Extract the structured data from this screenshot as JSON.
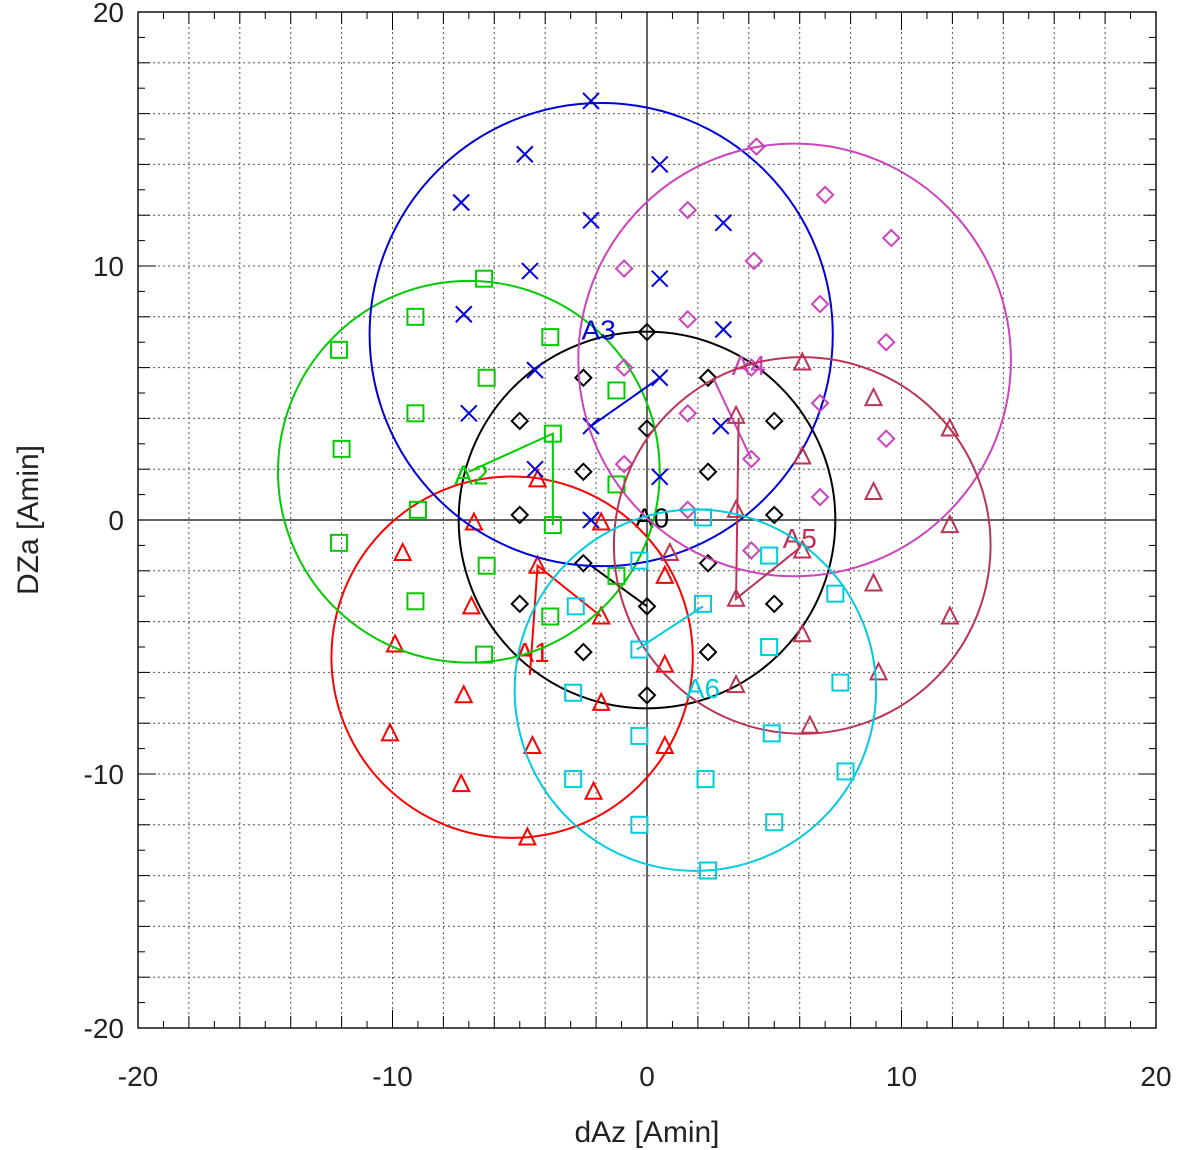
{
  "chart_data": {
    "type": "scatter",
    "title": "",
    "xlabel": "dAz [Amin]",
    "ylabel": "DZa [Amin]",
    "xlim": [
      -20,
      20
    ],
    "ylim": [
      -20,
      20
    ],
    "xticks": [
      "-20",
      "-10",
      "0",
      "10",
      "20"
    ],
    "yticks": [
      "-20",
      "-10",
      "0",
      "10",
      "20"
    ],
    "grid": true,
    "series": [
      {
        "name": "A0",
        "color": "#000000",
        "marker": "diamond",
        "center": [
          0.0,
          0.0
        ],
        "radius": 7.4,
        "label_pos": [
          0.2,
          -0.3
        ],
        "anchor": [
          0.0,
          -3.4
        ],
        "anchor_line": [
          [
            0.0,
            -3.4
          ],
          [
            -2.2,
            -1.8
          ]
        ],
        "points": [
          [
            0.0,
            7.4
          ],
          [
            -2.5,
            5.6
          ],
          [
            2.4,
            5.6
          ],
          [
            -5.0,
            3.9
          ],
          [
            0.0,
            3.6
          ],
          [
            5.0,
            3.9
          ],
          [
            -2.5,
            1.9
          ],
          [
            2.4,
            1.9
          ],
          [
            -5.0,
            0.2
          ],
          [
            5.0,
            0.2
          ],
          [
            -2.5,
            -1.7
          ],
          [
            2.4,
            -1.7
          ],
          [
            -5.0,
            -3.3
          ],
          [
            0.0,
            -3.4
          ],
          [
            5.0,
            -3.3
          ],
          [
            -2.5,
            -5.2
          ],
          [
            2.4,
            -5.2
          ],
          [
            0.0,
            -6.9
          ]
        ]
      },
      {
        "name": "A1",
        "color": "#ff0000",
        "marker": "triangle",
        "center": [
          -5.3,
          -5.4
        ],
        "radius": 7.1,
        "label_pos": [
          -4.5,
          -5.6
        ],
        "anchor": [
          -4.3,
          -1.8
        ],
        "anchor_line": [
          [
            -4.3,
            -1.8
          ],
          [
            -1.8,
            -3.8
          ],
          [
            -4.3,
            -1.8
          ],
          [
            -4.6,
            -6.1
          ]
        ],
        "points": [
          [
            -4.3,
            1.6
          ],
          [
            -6.8,
            -0.1
          ],
          [
            -1.8,
            -0.1
          ],
          [
            -9.6,
            -1.3
          ],
          [
            -4.3,
            -1.8
          ],
          [
            0.7,
            -2.2
          ],
          [
            -6.9,
            -3.4
          ],
          [
            -1.8,
            -3.8
          ],
          [
            -9.9,
            -4.9
          ],
          [
            0.7,
            -5.7
          ],
          [
            -7.2,
            -6.9
          ],
          [
            -1.8,
            -7.2
          ],
          [
            -10.1,
            -8.4
          ],
          [
            -4.5,
            -8.9
          ],
          [
            0.7,
            -8.9
          ],
          [
            -7.3,
            -10.4
          ],
          [
            -2.1,
            -10.7
          ],
          [
            -4.7,
            -12.5
          ]
        ]
      },
      {
        "name": "A2",
        "color": "#00cc00",
        "marker": "square",
        "center": [
          -7.0,
          1.9
        ],
        "radius": 7.5,
        "label_pos": [
          -6.9,
          1.4
        ],
        "anchor": [
          -3.7,
          -0.2
        ],
        "anchor_line": [
          [
            -3.7,
            -0.2
          ],
          [
            -3.7,
            3.4
          ],
          [
            -7.0,
            1.9
          ]
        ],
        "points": [
          [
            -6.4,
            9.5
          ],
          [
            -9.1,
            8.0
          ],
          [
            -12.1,
            6.7
          ],
          [
            -3.8,
            7.2
          ],
          [
            -6.3,
            5.6
          ],
          [
            -1.2,
            5.1
          ],
          [
            -9.1,
            4.2
          ],
          [
            -3.7,
            3.4
          ],
          [
            -12.0,
            2.8
          ],
          [
            -1.2,
            1.4
          ],
          [
            -9.0,
            0.4
          ],
          [
            -3.7,
            -0.2
          ],
          [
            -12.1,
            -0.9
          ],
          [
            -6.3,
            -1.8
          ],
          [
            -1.2,
            -2.2
          ],
          [
            -9.1,
            -3.2
          ],
          [
            -3.8,
            -3.8
          ],
          [
            -6.4,
            -5.3
          ]
        ]
      },
      {
        "name": "A3",
        "color": "#0000dd",
        "marker": "x",
        "center": [
          -1.8,
          7.3
        ],
        "radius": 9.1,
        "label_pos": [
          -1.9,
          7.1
        ],
        "anchor": [
          0.5,
          5.6
        ],
        "anchor_line": [
          [
            0.5,
            5.6
          ],
          [
            -2.2,
            3.7
          ]
        ],
        "points": [
          [
            -2.2,
            16.5
          ],
          [
            -4.8,
            14.4
          ],
          [
            0.5,
            14.0
          ],
          [
            -7.3,
            12.5
          ],
          [
            -2.2,
            11.8
          ],
          [
            3.0,
            11.7
          ],
          [
            -4.6,
            9.8
          ],
          [
            0.5,
            9.5
          ],
          [
            -7.2,
            8.1
          ],
          [
            3.0,
            7.5
          ],
          [
            -4.4,
            5.9
          ],
          [
            0.5,
            5.6
          ],
          [
            -7.0,
            4.2
          ],
          [
            -2.2,
            3.7
          ],
          [
            2.9,
            3.7
          ],
          [
            -4.4,
            2.0
          ],
          [
            0.5,
            1.7
          ],
          [
            -2.2,
            0.0
          ]
        ]
      },
      {
        "name": "A4",
        "color": "#cc44bb",
        "marker": "diamond",
        "center": [
          5.8,
          6.3
        ],
        "radius": 8.5,
        "label_pos": [
          4.0,
          5.7
        ],
        "anchor": [
          4.1,
          2.4
        ],
        "anchor_line": [
          [
            4.1,
            2.4
          ],
          [
            2.6,
            5.6
          ]
        ],
        "points": [
          [
            4.3,
            14.7
          ],
          [
            7.0,
            12.8
          ],
          [
            1.6,
            12.2
          ],
          [
            9.6,
            11.1
          ],
          [
            4.2,
            10.2
          ],
          [
            -0.9,
            9.9
          ],
          [
            6.8,
            8.5
          ],
          [
            1.6,
            7.9
          ],
          [
            9.4,
            7.0
          ],
          [
            -0.9,
            6.0
          ],
          [
            4.1,
            6.0
          ],
          [
            6.8,
            4.6
          ],
          [
            1.6,
            4.2
          ],
          [
            9.4,
            3.2
          ],
          [
            -0.9,
            2.2
          ],
          [
            4.1,
            2.4
          ],
          [
            6.8,
            0.9
          ],
          [
            1.6,
            0.4
          ],
          [
            4.1,
            -1.2
          ]
        ]
      },
      {
        "name": "A5",
        "color": "#bb3355",
        "marker": "triangle",
        "center": [
          6.1,
          -1.0
        ],
        "radius": 7.4,
        "label_pos": [
          6.0,
          -1.1
        ],
        "anchor": [
          3.5,
          -3.1
        ],
        "anchor_line": [
          [
            3.5,
            -3.1
          ],
          [
            3.6,
            4.0
          ],
          [
            3.5,
            -3.1
          ],
          [
            6.0,
            -1.1
          ]
        ],
        "points": [
          [
            6.1,
            6.2
          ],
          [
            8.9,
            4.8
          ],
          [
            3.5,
            4.1
          ],
          [
            11.9,
            3.6
          ],
          [
            6.1,
            2.5
          ],
          [
            8.9,
            1.1
          ],
          [
            3.5,
            0.4
          ],
          [
            11.9,
            -0.2
          ],
          [
            0.9,
            -1.3
          ],
          [
            6.1,
            -1.2
          ],
          [
            8.9,
            -2.5
          ],
          [
            3.5,
            -3.1
          ],
          [
            11.9,
            -3.8
          ],
          [
            6.1,
            -4.5
          ],
          [
            9.1,
            -6.0
          ],
          [
            3.5,
            -6.5
          ],
          [
            6.4,
            -8.1
          ]
        ]
      },
      {
        "name": "A6",
        "color": "#00ccdd",
        "marker": "square",
        "center": [
          1.9,
          -6.7
        ],
        "radius": 7.1,
        "label_pos": [
          2.2,
          -7.0
        ],
        "anchor": [
          -0.4,
          -5.1
        ],
        "anchor_line": [
          [
            -0.4,
            -5.1
          ],
          [
            2.2,
            -3.4
          ]
        ],
        "points": [
          [
            2.2,
            0.1
          ],
          [
            4.8,
            -1.4
          ],
          [
            -0.3,
            -1.6
          ],
          [
            7.4,
            -2.9
          ],
          [
            2.2,
            -3.3
          ],
          [
            -2.8,
            -3.4
          ],
          [
            4.8,
            -5.0
          ],
          [
            -0.3,
            -5.1
          ],
          [
            7.6,
            -6.4
          ],
          [
            -2.9,
            -6.8
          ],
          [
            -0.3,
            -8.5
          ],
          [
            4.9,
            -8.4
          ],
          [
            7.8,
            -9.9
          ],
          [
            2.3,
            -10.2
          ],
          [
            -2.9,
            -10.2
          ],
          [
            -0.3,
            -12.0
          ],
          [
            5.0,
            -11.9
          ],
          [
            2.4,
            -13.8
          ]
        ]
      }
    ]
  }
}
